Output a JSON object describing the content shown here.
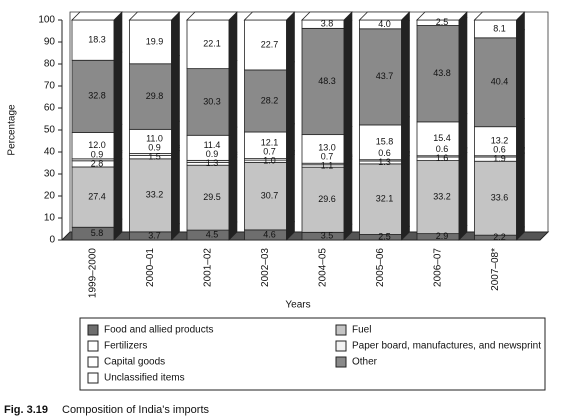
{
  "chart_data": {
    "type": "bar3d_stacked",
    "y_label": "Percentage",
    "x_label": "Years",
    "caption_label": "Fig. 3.19",
    "caption": "Composition of India's imports",
    "categories": [
      "1999–2000",
      "2000–01",
      "2001–02",
      "2002–03",
      "2004–05",
      "2005–06",
      "2006–07",
      "2007–08*"
    ],
    "ylim": [
      0,
      100
    ],
    "yticks": [
      0,
      10,
      20,
      30,
      40,
      50,
      60,
      70,
      80,
      90,
      100
    ],
    "series": [
      {
        "name": "Food and allied products",
        "color": "#6e6e6e",
        "values": [
          5.8,
          3.7,
          4.5,
          4.6,
          3.5,
          2.5,
          2.9,
          2.2
        ],
        "value_labels": [
          "5.8",
          "3.7",
          "4.5",
          "4.6",
          "3.5",
          "2.5",
          "2.9",
          "2.2"
        ]
      },
      {
        "name": "Fuel",
        "color": "#c4c4c4",
        "values": [
          27.4,
          33.2,
          29.5,
          30.7,
          29.6,
          32.1,
          33.2,
          33.6
        ],
        "value_labels": [
          "27.4",
          "33.2",
          "29.5",
          "30.7",
          "29.6",
          "32.1",
          "33.2",
          "33.6"
        ]
      },
      {
        "name": "Fertilizers",
        "color": "#ffffff",
        "values": [
          2.8,
          1.5,
          1.3,
          1.0,
          1.1,
          1.3,
          1.6,
          1.9
        ],
        "value_labels": [
          "2.8",
          "1.5",
          "1.3",
          "1.0",
          "1.1",
          "1.3",
          "1.6",
          "1.9"
        ]
      },
      {
        "name": "Paper board, manufactures, and newsprint",
        "color": "#f2f2f2",
        "values": [
          0.9,
          0.9,
          0.9,
          0.7,
          0.7,
          0.6,
          0.6,
          0.6
        ],
        "value_labels": [
          "0.9",
          "0.9",
          "0.9",
          "0.7",
          "0.7",
          "0.6",
          "0.6",
          "0.6"
        ]
      },
      {
        "name": "Capital goods",
        "color": "#ffffff",
        "values": [
          12.0,
          11.0,
          11.4,
          12.1,
          13.0,
          15.8,
          15.4,
          13.2
        ],
        "value_labels": [
          "12.0",
          "11.0",
          "11.4",
          "12.1",
          "13.0",
          "15.8",
          "15.4",
          "13.2"
        ]
      },
      {
        "name": "Other",
        "color": "#8a8a8a",
        "values": [
          32.8,
          29.8,
          30.3,
          28.2,
          48.3,
          43.7,
          43.8,
          40.4
        ],
        "value_labels": [
          "32.8",
          "29.8",
          "30.3",
          "28.2",
          "48.3",
          "43.7",
          "43.8",
          "40.4"
        ]
      },
      {
        "name": "Unclassified items",
        "color": "#ffffff",
        "values": [
          18.3,
          19.9,
          22.1,
          22.7,
          3.8,
          4.0,
          2.5,
          8.1
        ],
        "value_labels": [
          "18.3",
          "19.9",
          "22.1",
          "22.7",
          "3.8",
          "4.0",
          "2.5",
          "8.1"
        ]
      }
    ]
  }
}
